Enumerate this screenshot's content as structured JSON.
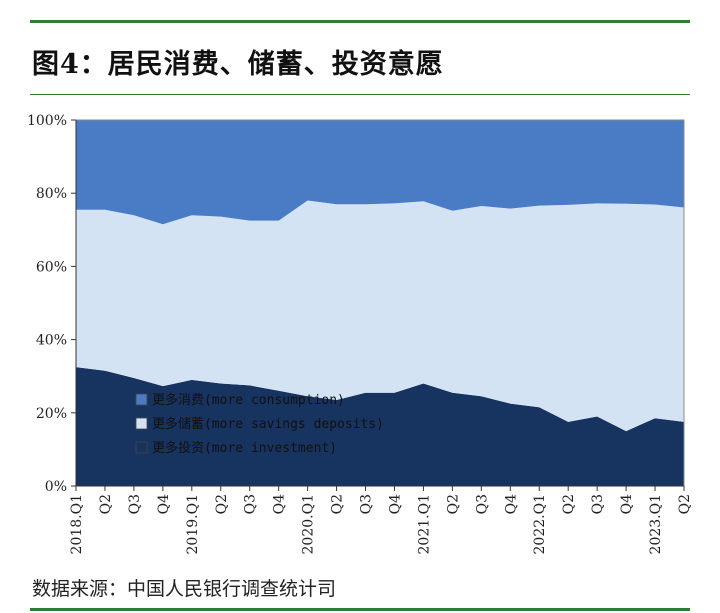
{
  "title": "图4：居民消费、储蓄、投资意愿",
  "source": "数据来源：中国人民银行调查统计司",
  "colors": {
    "consumption": "#4a7cc6",
    "savings": "#d3e3f3",
    "investment": "#17335f",
    "rule": "#2e7d32"
  },
  "chart_data": {
    "type": "area",
    "stacked": true,
    "x": [
      "2018.Q1",
      "Q2",
      "Q3",
      "Q4",
      "2019.Q1",
      "Q2",
      "Q3",
      "Q4",
      "2020.Q1",
      "Q2",
      "Q3",
      "Q4",
      "2021.Q1",
      "Q2",
      "Q3",
      "Q4",
      "2022.Q1",
      "Q2",
      "Q3",
      "Q4",
      "2023.Q1",
      "Q2"
    ],
    "ylim": [
      0,
      100
    ],
    "yticks": [
      "0%",
      "20%",
      "40%",
      "60%",
      "80%",
      "100%"
    ],
    "series": [
      {
        "name": "更多投资(more investment)",
        "values": [
          32.5,
          31.5,
          29.5,
          27.3,
          29,
          28,
          27.5,
          26,
          24.5,
          23.5,
          25.5,
          25.5,
          28,
          25.5,
          24.5,
          22.5,
          21.5,
          17.5,
          19,
          15,
          18.5,
          17.5
        ]
      },
      {
        "name": "更多储蓄(more savings deposits)",
        "values": [
          43,
          44,
          44.5,
          44.2,
          45,
          45.6,
          45,
          46.5,
          53.5,
          53.5,
          51.5,
          51.7,
          49.8,
          49.7,
          52,
          53.3,
          55.1,
          59.3,
          58.2,
          62.1,
          58.4,
          58.6
        ]
      },
      {
        "name": "更多消费(more consumption)",
        "values": [
          24.5,
          24.5,
          26,
          28.5,
          26,
          26.4,
          27.5,
          27.5,
          22,
          23,
          23,
          22.8,
          22.2,
          24.8,
          23.5,
          24.2,
          23.4,
          23.2,
          22.8,
          22.9,
          23.1,
          23.9
        ]
      }
    ],
    "legend": [
      {
        "label": "更多消费(more consumption)",
        "key": "consumption"
      },
      {
        "label": "更多储蓄(more savings deposits)",
        "key": "savings"
      },
      {
        "label": "更多投资(more investment)",
        "key": "investment"
      }
    ],
    "legend_position": "lower-left"
  }
}
